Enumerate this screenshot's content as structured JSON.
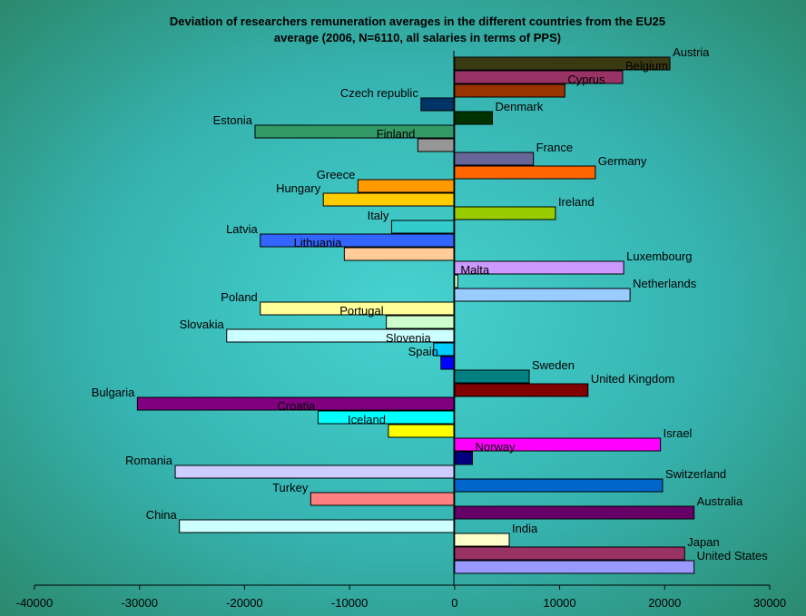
{
  "chart_data": {
    "type": "bar",
    "orientation": "horizontal",
    "title": "Deviation of researchers remuneration averages in the different countries from the EU25 average (2006, N=6110, all salaries in terms of PPS)",
    "title_lines": [
      "Deviation of researchers remuneration averages in the different countries from the EU25",
      "average (2006, N=6110, all salaries in terms of PPS)"
    ],
    "xlim": [
      -40000,
      30000
    ],
    "xticks": [
      {
        "value": -40000,
        "label": "-40000"
      },
      {
        "value": -30000,
        "label": "-30000"
      },
      {
        "value": -20000,
        "label": "-20000"
      },
      {
        "value": -10000,
        "label": "-10000"
      },
      {
        "value": 0,
        "label": "0"
      },
      {
        "value": 10000,
        "label": "10000"
      },
      {
        "value": 20000,
        "label": "20000"
      },
      {
        "value": 30000,
        "label": "30000"
      }
    ],
    "grid": false,
    "legend": "none",
    "categories": [
      "Austria",
      "Belgium",
      "Cyprus",
      "Czech republic",
      "Denmark",
      "Estonia",
      "Finland",
      "France",
      "Germany",
      "Greece",
      "Hungary",
      "Ireland",
      "Italy",
      "Latvia",
      "Lithuania",
      "Luxembourg",
      "Malta",
      "Netherlands",
      "Poland",
      "Portugal",
      "Slovakia",
      "Slovenia",
      "Spain",
      "Sweden",
      "United Kingdom",
      "Bulgaria",
      "Croatia",
      "Iceland",
      "Israel",
      "Norway",
      "Romania",
      "Switzerland",
      "Turkey",
      "Australia",
      "China",
      "India",
      "Japan",
      "United States"
    ],
    "values": [
      20500,
      16000,
      10500,
      -3200,
      3600,
      -19000,
      -3500,
      7500,
      13400,
      -9200,
      -12500,
      9600,
      -6000,
      -18500,
      -10500,
      16100,
      300,
      16700,
      -18500,
      -6500,
      -21700,
      -2000,
      -1300,
      7100,
      12700,
      -30200,
      -13000,
      -6300,
      19600,
      1700,
      -26600,
      19800,
      -13700,
      22800,
      -26200,
      5200,
      21900,
      22800
    ],
    "colors": [
      "#3a3a12",
      "#993366",
      "#993300",
      "#003366",
      "#003300",
      "#339966",
      "#969696",
      "#666699",
      "#ff6600",
      "#ff9900",
      "#ffcc00",
      "#99cc00",
      "#33cccc",
      "#3366ff",
      "#ffcc99",
      "#cc99ff",
      "#ccffcc",
      "#99ccff",
      "#ffff99",
      "#ccffcc",
      "#ccffff",
      "#00ccff",
      "#0000ff",
      "#008080",
      "#800000",
      "#800080",
      "#00ffff",
      "#ffff00",
      "#ff00ff",
      "#000080",
      "#ccccff",
      "#0066cc",
      "#ff8080",
      "#660066",
      "#ccffff",
      "#ffffcc",
      "#993366",
      "#9999ff"
    ]
  }
}
